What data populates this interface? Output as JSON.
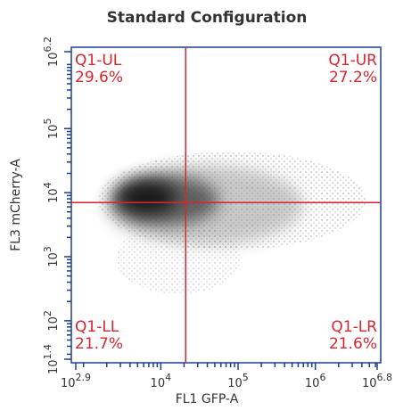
{
  "chart_data": {
    "type": "density",
    "title": "Standard Configuration",
    "xlabel": "FL1 GFP-A",
    "ylabel": "FL3 mCherry-A",
    "xscale": "log",
    "yscale": "log",
    "xlim": [
      794.33,
      6309573.4
    ],
    "ylim": [
      25.12,
      1584893.2
    ],
    "xticks": [
      {
        "value": 794.33,
        "label": "10^2.9"
      },
      {
        "value": 10000,
        "label": "10^4"
      },
      {
        "value": 100000,
        "label": "10^5"
      },
      {
        "value": 1000000,
        "label": "10^6"
      },
      {
        "value": 6309573.4,
        "label": "10^6.8"
      }
    ],
    "yticks": [
      {
        "value": 25.12,
        "label": "10^1.4"
      },
      {
        "value": 100,
        "label": "10^2"
      },
      {
        "value": 1000,
        "label": "10^3"
      },
      {
        "value": 10000,
        "label": "10^4"
      },
      {
        "value": 100000,
        "label": "10^5"
      },
      {
        "value": 1584893.2,
        "label": "10^6.2"
      }
    ],
    "xminor_ticks": [
      1000,
      2000,
      3000,
      4000,
      5000,
      6000,
      7000,
      8000,
      9000,
      20000,
      30000,
      40000,
      50000,
      60000,
      70000,
      80000,
      90000,
      200000,
      300000,
      400000,
      500000,
      600000,
      700000,
      800000,
      900000,
      2000000,
      3000000,
      4000000,
      5000000,
      6000000
    ],
    "yminor_ticks": [
      30,
      40,
      50,
      60,
      70,
      80,
      90,
      200,
      300,
      400,
      500,
      600,
      700,
      800,
      900,
      2000,
      3000,
      4000,
      5000,
      6000,
      7000,
      8000,
      9000,
      20000,
      30000,
      40000,
      50000,
      60000,
      70000,
      80000,
      90000,
      200000,
      300000,
      400000,
      500000,
      600000,
      700000,
      800000,
      900000,
      1000000
    ],
    "gate": {
      "x": 21000,
      "y": 7000,
      "color": "#d7262e"
    },
    "quadrants": [
      {
        "name": "Q1-UL",
        "percent": "29.6%",
        "corner": "upper-left"
      },
      {
        "name": "Q1-UR",
        "percent": "27.2%",
        "corner": "upper-right"
      },
      {
        "name": "Q1-LL",
        "percent": "21.7%",
        "corner": "lower-left"
      },
      {
        "name": "Q1-LR",
        "percent": "21.6%",
        "corner": "lower-right"
      }
    ]
  }
}
